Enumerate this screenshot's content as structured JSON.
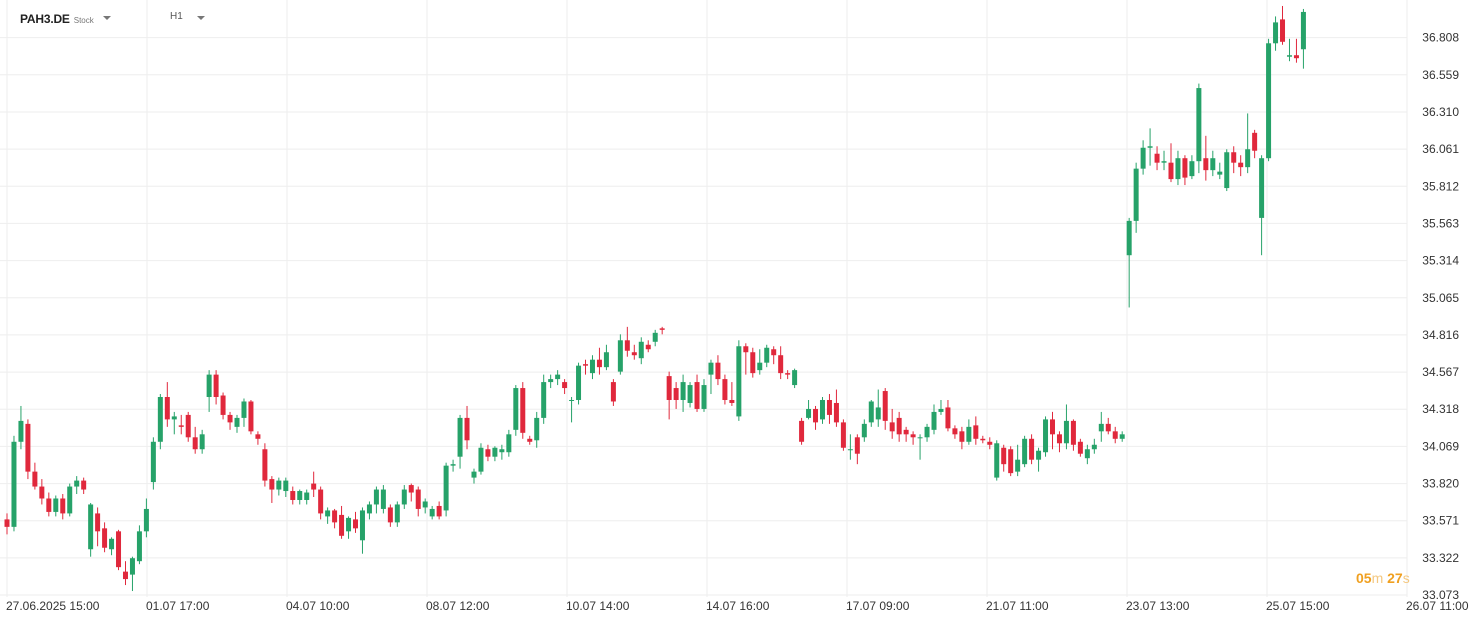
{
  "header": {
    "symbol": "PAH3.DE",
    "symbol_type": "Stock",
    "timeframe": "H1"
  },
  "countdown": {
    "minutes": "05",
    "minutes_unit": "m",
    "seconds": "27",
    "seconds_unit": "s"
  },
  "colors": {
    "up": "#26a269",
    "down": "#e0283c",
    "grid": "#eeeeee",
    "axis_text": "#333333",
    "countdown": "#f0a020"
  },
  "chart_data": {
    "type": "candlestick",
    "grid": true,
    "y_axis_position": "right",
    "ylim": [
      33.06,
      37.06
    ],
    "y_ticks": [
      "36.808",
      "36.559",
      "36.310",
      "36.061",
      "35.812",
      "35.563",
      "35.314",
      "35.065",
      "34.816",
      "34.567",
      "34.318",
      "34.069",
      "33.820",
      "33.571",
      "33.322",
      "33.073"
    ],
    "x_ticks": [
      "27.06.2025 15:00",
      "01.07 17:00",
      "04.07 10:00",
      "08.07 12:00",
      "10.07 14:00",
      "14.07 16:00",
      "17.07 09:00",
      "21.07 11:00",
      "23.07 13:00",
      "25.07 15:00",
      "26.07 11:00"
    ],
    "bar_interval": "1h",
    "candles": [
      [
        33.58,
        33.53,
        33.48,
        33.62
      ],
      [
        33.53,
        34.1,
        33.5,
        34.14
      ],
      [
        34.1,
        34.24,
        34.05,
        34.34
      ],
      [
        34.22,
        33.9,
        33.85,
        34.25
      ],
      [
        33.9,
        33.8,
        33.78,
        33.96
      ],
      [
        33.8,
        33.72,
        33.68,
        33.85
      ],
      [
        33.72,
        33.63,
        33.6,
        33.76
      ],
      [
        33.63,
        33.72,
        33.6,
        33.74
      ],
      [
        33.72,
        33.62,
        33.58,
        33.75
      ],
      [
        33.62,
        33.8,
        33.6,
        33.82
      ],
      [
        33.8,
        33.84,
        33.75,
        33.87
      ],
      [
        33.84,
        33.78,
        33.75,
        33.86
      ],
      [
        33.38,
        33.68,
        33.33,
        33.69
      ],
      [
        33.62,
        33.5,
        33.4,
        33.66
      ],
      [
        33.52,
        33.39,
        33.36,
        33.56
      ],
      [
        33.38,
        33.45,
        33.34,
        33.46
      ],
      [
        33.5,
        33.26,
        33.24,
        33.51
      ],
      [
        33.23,
        33.18,
        33.14,
        33.3
      ],
      [
        33.21,
        33.32,
        33.1,
        33.33
      ],
      [
        33.3,
        33.5,
        33.28,
        33.54
      ],
      [
        33.5,
        33.65,
        33.46,
        33.72
      ],
      [
        33.83,
        34.1,
        33.78,
        34.13
      ],
      [
        34.1,
        34.4,
        34.05,
        34.42
      ],
      [
        34.4,
        34.25,
        34.2,
        34.5
      ],
      [
        34.25,
        34.27,
        34.15,
        34.3
      ],
      [
        34.21,
        34.2,
        34.15,
        34.28
      ],
      [
        34.28,
        34.13,
        34.1,
        34.3
      ],
      [
        34.13,
        34.05,
        34.02,
        34.2
      ],
      [
        34.05,
        34.15,
        34.02,
        34.18
      ],
      [
        34.4,
        34.55,
        34.3,
        34.58
      ],
      [
        34.55,
        34.4,
        34.35,
        34.58
      ],
      [
        34.41,
        34.28,
        34.25,
        34.43
      ],
      [
        34.28,
        34.23,
        34.18,
        34.3
      ],
      [
        34.2,
        34.26,
        34.16,
        34.28
      ],
      [
        34.26,
        34.37,
        34.2,
        34.39
      ],
      [
        34.37,
        34.17,
        34.15,
        34.38
      ],
      [
        34.15,
        34.12,
        34.08,
        34.17
      ],
      [
        34.05,
        33.84,
        33.8,
        34.09
      ],
      [
        33.85,
        33.78,
        33.69,
        33.87
      ],
      [
        33.78,
        33.84,
        33.74,
        33.86
      ],
      [
        33.77,
        33.84,
        33.73,
        33.86
      ],
      [
        33.77,
        33.71,
        33.68,
        33.8
      ],
      [
        33.71,
        33.77,
        33.68,
        33.78
      ],
      [
        33.71,
        33.76,
        33.68,
        33.78
      ],
      [
        33.82,
        33.78,
        33.73,
        33.9
      ],
      [
        33.78,
        33.62,
        33.58,
        33.8
      ],
      [
        33.6,
        33.64,
        33.55,
        33.66
      ],
      [
        33.64,
        33.56,
        33.52,
        33.65
      ],
      [
        33.61,
        33.47,
        33.45,
        33.67
      ],
      [
        33.5,
        33.59,
        33.45,
        33.6
      ],
      [
        33.58,
        33.52,
        33.49,
        33.63
      ],
      [
        33.44,
        33.64,
        33.35,
        33.66
      ],
      [
        33.62,
        33.68,
        33.58,
        33.7
      ],
      [
        33.68,
        33.78,
        33.62,
        33.8
      ],
      [
        33.65,
        33.78,
        33.62,
        33.81
      ],
      [
        33.66,
        33.56,
        33.53,
        33.68
      ],
      [
        33.56,
        33.68,
        33.53,
        33.7
      ],
      [
        33.68,
        33.78,
        33.65,
        33.81
      ],
      [
        33.81,
        33.76,
        33.7,
        33.82
      ],
      [
        33.78,
        33.65,
        33.6,
        33.8
      ],
      [
        33.66,
        33.7,
        33.62,
        33.72
      ],
      [
        33.6,
        33.65,
        33.58,
        33.67
      ],
      [
        33.67,
        33.6,
        33.58,
        33.7
      ],
      [
        33.64,
        33.94,
        33.6,
        33.96
      ],
      [
        33.94,
        33.95,
        33.9,
        33.98
      ],
      [
        34.0,
        34.26,
        33.92,
        34.28
      ],
      [
        34.26,
        34.11,
        34.05,
        34.34
      ],
      [
        33.86,
        33.9,
        33.82,
        33.92
      ],
      [
        33.9,
        34.06,
        33.88,
        34.09
      ],
      [
        34.05,
        34.0,
        33.97,
        34.08
      ],
      [
        34.0,
        34.06,
        33.97,
        34.07
      ],
      [
        34.03,
        34.05,
        33.98,
        34.08
      ],
      [
        34.03,
        34.15,
        34.0,
        34.18
      ],
      [
        34.18,
        34.46,
        34.14,
        34.48
      ],
      [
        34.46,
        34.16,
        34.12,
        34.5
      ],
      [
        34.12,
        34.1,
        34.08,
        34.14
      ],
      [
        34.11,
        34.26,
        34.06,
        34.3
      ],
      [
        34.26,
        34.5,
        34.22,
        34.55
      ],
      [
        34.5,
        34.52,
        34.46,
        34.55
      ],
      [
        34.52,
        34.55,
        34.48,
        34.58
      ],
      [
        34.5,
        34.46,
        34.42,
        34.52
      ],
      [
        34.38,
        34.38,
        34.23,
        34.4
      ],
      [
        34.38,
        34.61,
        34.35,
        34.63
      ],
      [
        34.62,
        34.61,
        34.55,
        34.65
      ],
      [
        34.56,
        34.65,
        34.52,
        34.68
      ],
      [
        34.65,
        34.6,
        34.55,
        34.73
      ],
      [
        34.6,
        34.7,
        34.58,
        34.75
      ],
      [
        34.5,
        34.37,
        34.34,
        34.52
      ],
      [
        34.57,
        34.78,
        34.55,
        34.82
      ],
      [
        34.78,
        34.71,
        34.67,
        34.87
      ],
      [
        34.7,
        34.68,
        34.65,
        34.75
      ],
      [
        34.66,
        34.77,
        34.62,
        34.8
      ],
      [
        34.75,
        34.72,
        34.7,
        34.78
      ],
      [
        34.77,
        34.83,
        34.74,
        34.85
      ],
      [
        34.86,
        34.85,
        34.82,
        34.87
      ],
      [
        34.54,
        34.38,
        34.25,
        34.57
      ],
      [
        34.46,
        34.38,
        34.32,
        34.5
      ],
      [
        34.38,
        34.5,
        34.3,
        34.55
      ],
      [
        34.36,
        34.48,
        34.33,
        34.5
      ],
      [
        34.5,
        34.32,
        34.3,
        34.55
      ],
      [
        34.32,
        34.48,
        34.3,
        34.52
      ],
      [
        34.55,
        34.63,
        34.42,
        34.65
      ],
      [
        34.63,
        34.52,
        34.48,
        34.68
      ],
      [
        34.52,
        34.38,
        34.35,
        34.55
      ],
      [
        34.38,
        34.36,
        34.34,
        34.5
      ],
      [
        34.27,
        34.74,
        34.24,
        34.78
      ],
      [
        34.74,
        34.7,
        34.55,
        34.76
      ],
      [
        34.7,
        34.56,
        34.53,
        34.73
      ],
      [
        34.58,
        34.63,
        34.55,
        34.72
      ],
      [
        34.63,
        34.73,
        34.6,
        34.75
      ],
      [
        34.72,
        34.68,
        34.62,
        34.74
      ],
      [
        34.68,
        34.56,
        34.52,
        34.74
      ],
      [
        34.56,
        34.55,
        34.52,
        34.58
      ],
      [
        34.48,
        34.58,
        34.46,
        34.59
      ],
      [
        34.24,
        34.1,
        34.08,
        34.26
      ],
      [
        34.26,
        34.32,
        34.25,
        34.38
      ],
      [
        34.32,
        34.23,
        34.18,
        34.34
      ],
      [
        34.25,
        34.38,
        34.22,
        34.4
      ],
      [
        34.38,
        34.28,
        34.22,
        34.42
      ],
      [
        34.36,
        34.23,
        34.2,
        34.45
      ],
      [
        34.23,
        34.06,
        34.04,
        34.25
      ],
      [
        34.05,
        34.05,
        33.98,
        34.15
      ],
      [
        34.13,
        34.02,
        33.95,
        34.15
      ],
      [
        34.13,
        34.22,
        34.1,
        34.25
      ],
      [
        34.23,
        34.37,
        34.2,
        34.38
      ],
      [
        34.25,
        34.33,
        34.2,
        34.45
      ],
      [
        34.44,
        34.24,
        34.18,
        34.46
      ],
      [
        34.23,
        34.17,
        34.12,
        34.32
      ],
      [
        34.26,
        34.15,
        34.1,
        34.3
      ],
      [
        34.18,
        34.15,
        34.1,
        34.2
      ],
      [
        34.15,
        34.13,
        34.08,
        34.17
      ],
      [
        34.13,
        34.13,
        33.98,
        34.15
      ],
      [
        34.13,
        34.2,
        34.1,
        34.22
      ],
      [
        34.18,
        34.3,
        34.15,
        34.35
      ],
      [
        34.3,
        34.32,
        34.28,
        34.38
      ],
      [
        34.33,
        34.19,
        34.17,
        34.38
      ],
      [
        34.19,
        34.15,
        34.12,
        34.21
      ],
      [
        34.17,
        34.1,
        34.05,
        34.2
      ],
      [
        34.1,
        34.2,
        34.08,
        34.25
      ],
      [
        34.21,
        34.12,
        34.08,
        34.27
      ],
      [
        34.12,
        34.11,
        34.09,
        34.14
      ],
      [
        34.1,
        34.08,
        34.05,
        34.13
      ],
      [
        33.86,
        34.09,
        33.84,
        34.11
      ],
      [
        34.06,
        33.95,
        33.9,
        34.08
      ],
      [
        34.05,
        33.89,
        33.87,
        34.07
      ],
      [
        33.9,
        33.98,
        33.87,
        34.08
      ],
      [
        33.95,
        34.12,
        33.93,
        34.14
      ],
      [
        34.12,
        33.98,
        33.95,
        34.15
      ],
      [
        33.98,
        34.04,
        33.9,
        34.06
      ],
      [
        34.03,
        34.25,
        34.0,
        34.27
      ],
      [
        34.25,
        34.15,
        34.05,
        34.3
      ],
      [
        34.15,
        34.09,
        34.03,
        34.17
      ],
      [
        34.09,
        34.24,
        34.05,
        34.35
      ],
      [
        34.24,
        34.08,
        34.04,
        34.25
      ],
      [
        34.1,
        34.02,
        34.0,
        34.12
      ],
      [
        33.99,
        34.05,
        33.95,
        34.08
      ],
      [
        34.05,
        34.08,
        34.02,
        34.12
      ],
      [
        34.17,
        34.22,
        34.1,
        34.3
      ],
      [
        34.22,
        34.17,
        34.15,
        34.26
      ],
      [
        34.17,
        34.12,
        34.09,
        34.2
      ],
      [
        34.12,
        34.15,
        34.1,
        34.17
      ],
      [
        35.35,
        35.58,
        35.0,
        35.6
      ],
      [
        35.58,
        35.93,
        35.5,
        35.97
      ],
      [
        35.93,
        36.07,
        35.89,
        36.12
      ],
      [
        36.07,
        36.08,
        35.95,
        36.2
      ],
      [
        36.03,
        35.97,
        35.92,
        36.08
      ],
      [
        35.97,
        35.98,
        35.92,
        36.05
      ],
      [
        35.97,
        35.86,
        35.84,
        36.1
      ],
      [
        35.86,
        36.0,
        35.82,
        36.05
      ],
      [
        36.0,
        35.87,
        35.82,
        36.02
      ],
      [
        35.88,
        35.98,
        35.86,
        36.02
      ],
      [
        35.98,
        36.47,
        35.9,
        36.5
      ],
      [
        36.0,
        35.92,
        35.85,
        36.15
      ],
      [
        35.92,
        36.0,
        35.88,
        36.05
      ],
      [
        35.89,
        35.91,
        35.86,
        35.97
      ],
      [
        35.8,
        36.04,
        35.78,
        36.06
      ],
      [
        36.04,
        35.97,
        35.9,
        36.08
      ],
      [
        35.97,
        35.94,
        35.88,
        36.02
      ],
      [
        35.94,
        36.06,
        35.9,
        36.3
      ],
      [
        36.17,
        36.05,
        36.0,
        36.19
      ],
      [
        35.6,
        36.0,
        35.35,
        36.02
      ],
      [
        36.0,
        36.77,
        35.98,
        36.8
      ],
      [
        36.77,
        36.91,
        36.72,
        36.95
      ],
      [
        36.93,
        36.78,
        36.76,
        37.02
      ],
      [
        36.68,
        36.69,
        36.65,
        36.8
      ],
      [
        36.69,
        36.67,
        36.64,
        36.8
      ],
      [
        36.73,
        36.98,
        36.6,
        37.0
      ]
    ]
  }
}
